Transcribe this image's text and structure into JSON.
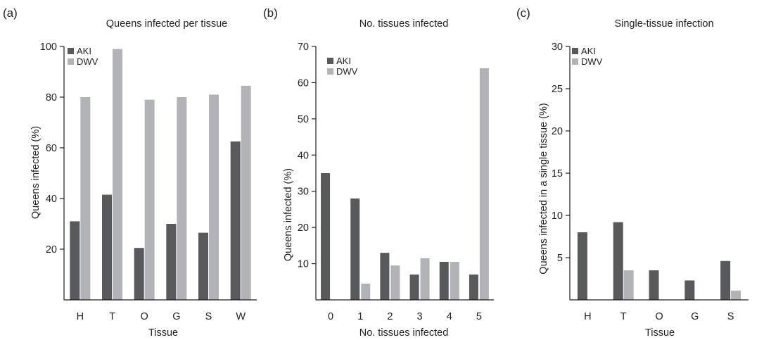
{
  "colors": {
    "AKI": "#58595b",
    "DWV": "#b1b3b6",
    "axis": "#231f20"
  },
  "chart_data": [
    {
      "panel": "(a)",
      "type": "bar",
      "title": "Queens infected per tissue",
      "xlabel": "Tissue",
      "ylabel": "Queens infected (%)",
      "ylim": [
        0,
        100
      ],
      "yticks": [
        20,
        40,
        60,
        80,
        100
      ],
      "categories": [
        "H",
        "T",
        "O",
        "G",
        "S",
        "W"
      ],
      "series": [
        {
          "name": "AKI",
          "values": [
            31,
            41.5,
            20.5,
            30,
            26.5,
            62.5
          ]
        },
        {
          "name": "DWV",
          "values": [
            80,
            99,
            79,
            80,
            81,
            84.5
          ]
        }
      ],
      "legend": "top-left",
      "grid": false
    },
    {
      "panel": "(b)",
      "type": "bar",
      "title": "No. tissues infected",
      "xlabel": "No. tissues infected",
      "ylabel": "Queens infected (%)",
      "ylim": [
        0,
        70
      ],
      "yticks": [
        10,
        20,
        30,
        40,
        50,
        60,
        70
      ],
      "categories": [
        "0",
        "1",
        "2",
        "3",
        "4",
        "5"
      ],
      "series": [
        {
          "name": "AKI",
          "values": [
            35,
            28,
            13,
            7,
            10.5,
            7
          ]
        },
        {
          "name": "DWV",
          "values": [
            0,
            4.5,
            9.5,
            11.5,
            10.5,
            64
          ]
        }
      ],
      "legend": "top-left",
      "grid": false
    },
    {
      "panel": "(c)",
      "type": "bar",
      "title": "Single-tissue infection",
      "xlabel": "Tissue",
      "ylabel": "Queens infected in a single tissue (%)",
      "ylim": [
        0,
        30
      ],
      "yticks": [
        5,
        10,
        15,
        20,
        25,
        30
      ],
      "categories": [
        "H",
        "T",
        "O",
        "G",
        "S"
      ],
      "series": [
        {
          "name": "AKI",
          "values": [
            8,
            9.2,
            3.5,
            2.3,
            4.6
          ]
        },
        {
          "name": "DWV",
          "values": [
            0,
            3.5,
            0,
            0,
            1.1
          ]
        }
      ],
      "legend": "top-left",
      "grid": false
    }
  ]
}
